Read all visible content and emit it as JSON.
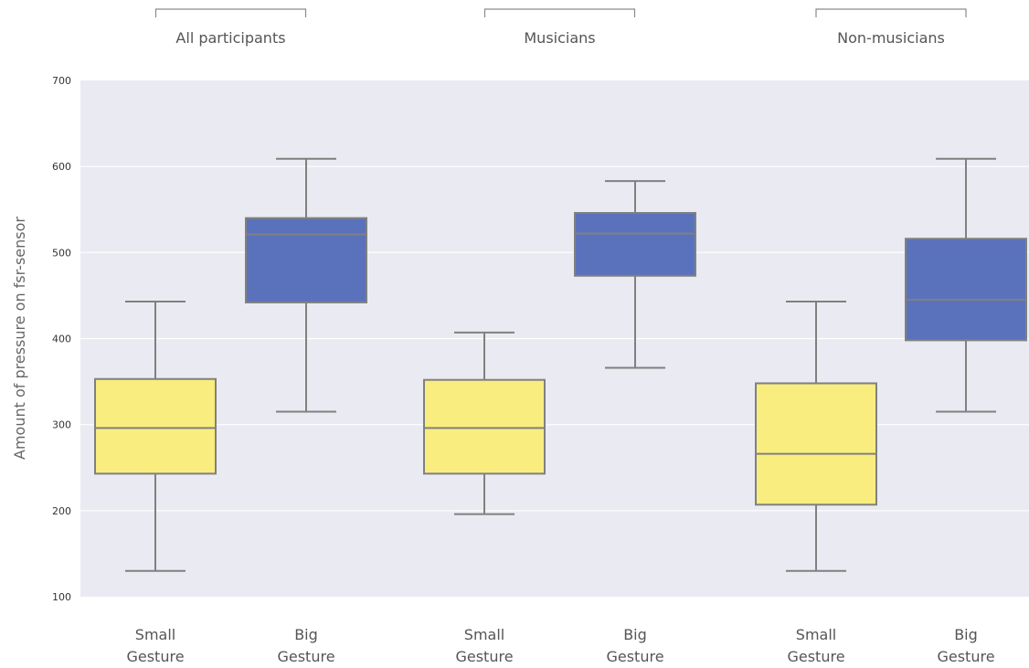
{
  "chart_data": {
    "type": "box",
    "ylabel": "Amount of pressure on fsr-sensor",
    "ylim": [
      100,
      700
    ],
    "yticks": [
      100,
      200,
      300,
      400,
      500,
      600,
      700
    ],
    "grid": true,
    "colors": {
      "Small Gesture": "#f8ed7e",
      "Big Gesture": "#5a72bc",
      "plot_background": "#eaeaf2"
    },
    "groups": [
      {
        "label": "All participants",
        "boxes": [
          {
            "category": "Small Gesture",
            "label_lines": [
              "Small",
              "Gesture"
            ],
            "min": 130,
            "q1": 243,
            "median": 296,
            "q3": 353,
            "max": 443
          },
          {
            "category": "Big Gesture",
            "label_lines": [
              "Big",
              "Gesture"
            ],
            "min": 315,
            "q1": 442,
            "median": 521,
            "q3": 540,
            "max": 609
          }
        ]
      },
      {
        "label": "Musicians",
        "boxes": [
          {
            "category": "Small Gesture",
            "label_lines": [
              "Small",
              "Gesture"
            ],
            "min": 196,
            "q1": 243,
            "median": 296,
            "q3": 352,
            "max": 407
          },
          {
            "category": "Big Gesture",
            "label_lines": [
              "Big",
              "Gesture"
            ],
            "min": 366,
            "q1": 473,
            "median": 522,
            "q3": 546,
            "max": 583
          }
        ]
      },
      {
        "label": "Non-musicians",
        "boxes": [
          {
            "category": "Small Gesture",
            "label_lines": [
              "Small",
              "Gesture"
            ],
            "min": 130,
            "q1": 207,
            "median": 266,
            "q3": 348,
            "max": 443
          },
          {
            "category": "Big Gesture",
            "label_lines": [
              "Big",
              "Gesture"
            ],
            "min": 315,
            "q1": 398,
            "median": 445,
            "q3": 516,
            "max": 609
          }
        ]
      }
    ]
  }
}
